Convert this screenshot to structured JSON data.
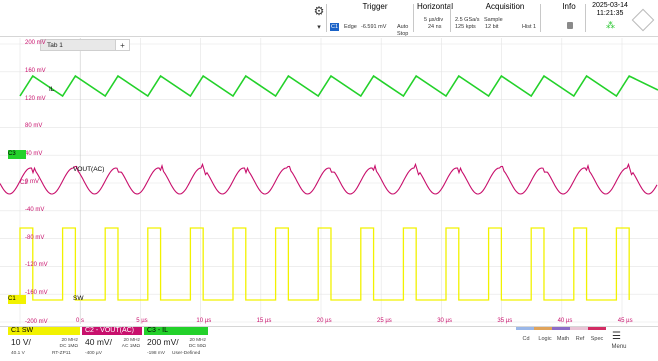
{
  "topbar": {
    "trigger": {
      "title": "Trigger",
      "source": "C1",
      "type": "Edge",
      "level": "-6.591 mV",
      "mode": "Auto",
      "state": "Stop"
    },
    "horizontal": {
      "title": "Horizontal",
      "scale": "5 µs/div",
      "position": "24 ns"
    },
    "acquisition": {
      "title": "Acquisition",
      "rate": "2.5 GSa/s",
      "points": "125 kpts",
      "mode": "Sample",
      "bits": "12 bit",
      "hist": "Hist 1"
    },
    "info": {
      "title": "Info"
    },
    "datetime": {
      "date": "2025-03-14",
      "time": "11:21:35"
    }
  },
  "tab": {
    "label": "Tab 1",
    "add": "+"
  },
  "yaxis": [
    "200 mV",
    "160 mV",
    "120 mV",
    "80 mV",
    "40 mV",
    "0 mV",
    "-40 mV",
    "-80 mV",
    "-120 mV",
    "-160 mV",
    "-200 mV"
  ],
  "xaxis": [
    "0 s",
    "5 µs",
    "10 µs",
    "15 µs",
    "20 µs",
    "25 µs",
    "30 µs",
    "35 µs",
    "40 µs",
    "45 µs"
  ],
  "markers": {
    "c3": "C3",
    "c2": "C2",
    "c1": "C1",
    "il": "IL",
    "vout": "VOUT(AC)",
    "sw": "SW"
  },
  "channels": {
    "c1": {
      "head": "C1  SW",
      "scale": "10 V/",
      "bw": "20 MHz",
      "coupling": "DC 1MΩ",
      "offset": "40.1 V",
      "probe": "RT-ZP11",
      "color": "#f2f200"
    },
    "c2": {
      "head": "C2 - VOUT(AC)",
      "scale": "40 mV/",
      "bw": "20 MHz",
      "coupling": "AC 1MΩ",
      "offset": "-400 µV",
      "color": "#c8106c"
    },
    "c3": {
      "head": "C3 - IL",
      "scale": "200 mV/",
      "bw": "20 MHz",
      "coupling": "DC 50Ω",
      "offset": "-198 mV",
      "probe": "User-Defined",
      "color": "#23d12a"
    }
  },
  "right_buttons": {
    "cursor": "Cd",
    "logic": "Logic",
    "math": "Math",
    "ref": "Ref",
    "spec": "Spec",
    "menu": "Menu"
  },
  "colors": {
    "accent": "#1a62c7",
    "grid": "#e4e4e4"
  }
}
